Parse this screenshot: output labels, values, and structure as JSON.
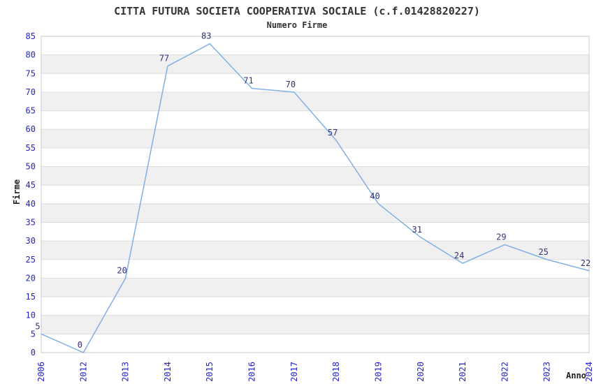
{
  "header": {
    "title": "CITTA FUTURA SOCIETA COOPERATIVA SOCIALE (c.f.01428820227)",
    "subtitle": "Numero Firme"
  },
  "chart_data": {
    "type": "line",
    "title": "CITTA FUTURA SOCIETA COOPERATIVA SOCIALE (c.f.01428820227)",
    "subtitle": "Numero Firme",
    "xlabel": "Anno",
    "ylabel": "Firme",
    "categories": [
      "2006",
      "2012",
      "2013",
      "2014",
      "2015",
      "2016",
      "2017",
      "2018",
      "2019",
      "2020",
      "2021",
      "2022",
      "2023",
      "2024"
    ],
    "values": [
      5,
      0,
      20,
      77,
      83,
      71,
      70,
      57,
      40,
      31,
      24,
      29,
      25,
      22
    ],
    "point_labels": [
      "5",
      "0",
      "20",
      "77",
      "83",
      "71",
      "70",
      "57",
      "40",
      "31",
      "24",
      "29",
      "25",
      "22"
    ],
    "ylim": [
      0,
      85
    ],
    "ytick_step": 5,
    "grid": "horizontal-alternating-bands",
    "legend": "none",
    "colors": {
      "line": "#7FAFE3",
      "point_label": "#333377",
      "tick_label": "#2323CC",
      "band": "#F0F0F0",
      "gridline": "#DCDCDC",
      "frame": "#C8C8C8",
      "title_text": "#333333",
      "background": "#FFFFFF"
    }
  }
}
